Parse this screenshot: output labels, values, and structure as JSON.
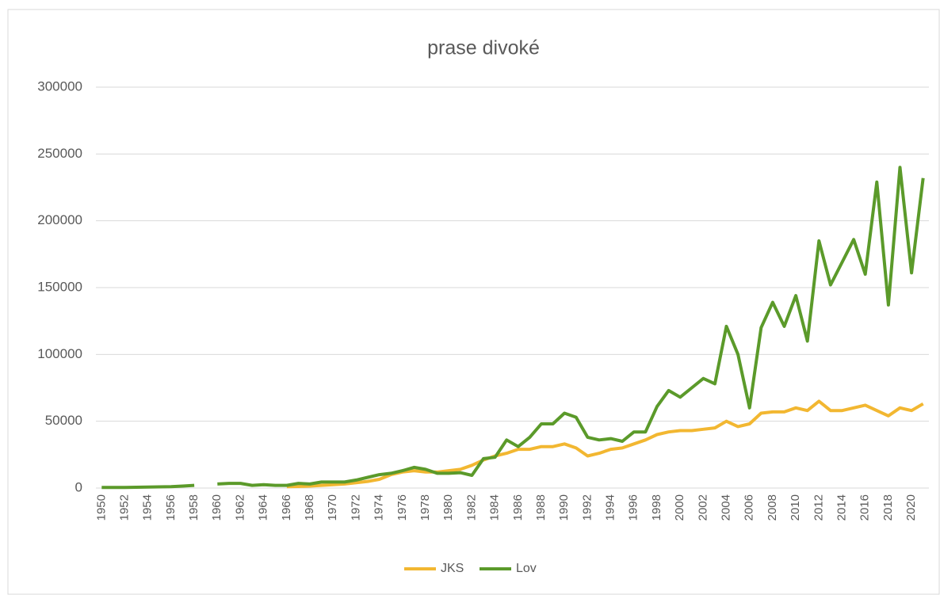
{
  "chart_data": {
    "type": "line",
    "title": "prase divoké",
    "categories": [
      "1950",
      null,
      "1952",
      null,
      "1954",
      null,
      "1956",
      null,
      "1958",
      null,
      "1960",
      null,
      "1962",
      null,
      "1964",
      null,
      "1966",
      null,
      "1968",
      null,
      "1970",
      null,
      "1972",
      null,
      "1974",
      null,
      "1976",
      null,
      "1978",
      null,
      "1980",
      null,
      "1982",
      null,
      "1984",
      null,
      "1986",
      null,
      "1988",
      null,
      "1990",
      null,
      "1992",
      null,
      "1994",
      null,
      "1996",
      null,
      "1998",
      null,
      "2000",
      null,
      "2002",
      null,
      "2004",
      null,
      "2006",
      null,
      "2008",
      null,
      "2010",
      null,
      "2012",
      null,
      "2014",
      null,
      "2016",
      null,
      "2018",
      null,
      "2020",
      null
    ],
    "series": [
      {
        "name": "JKS",
        "color": "#f2b731",
        "values": [
          null,
          null,
          null,
          null,
          null,
          null,
          null,
          null,
          null,
          null,
          null,
          null,
          null,
          null,
          null,
          null,
          1000,
          1200,
          1500,
          2000,
          2500,
          3000,
          4000,
          5000,
          6500,
          10000,
          12000,
          13000,
          12000,
          12000,
          13000,
          14000,
          17000,
          21000,
          24000,
          26000,
          29000,
          29000,
          31000,
          31000,
          33000,
          30000,
          24000,
          26000,
          29000,
          30000,
          33000,
          36000,
          40000,
          42000,
          43000,
          43000,
          44000,
          45000,
          50000,
          46000,
          48000,
          56000,
          57000,
          57000,
          60000,
          58000,
          65000,
          58000,
          58000,
          60000,
          62000,
          58000,
          54000,
          60000,
          58000,
          63000
        ]
      },
      {
        "name": "Lov",
        "color": "#5b9a2a",
        "values": [
          500,
          500,
          500,
          600,
          800,
          900,
          1000,
          1500,
          2000,
          null,
          3000,
          3500,
          3500,
          2000,
          2500,
          2000,
          2000,
          3500,
          3000,
          4500,
          4500,
          4500,
          6000,
          8000,
          10000,
          11000,
          13000,
          15500,
          14000,
          11000,
          11000,
          11500,
          9500,
          22000,
          23000,
          36000,
          31000,
          38000,
          48000,
          48000,
          56000,
          53000,
          38000,
          36000,
          37000,
          35000,
          42000,
          42000,
          61000,
          73000,
          68000,
          75000,
          82000,
          78000,
          121000,
          100000,
          60000,
          120000,
          139000,
          121000,
          144000,
          110000,
          185000,
          152000,
          169000,
          186000,
          160000,
          229000,
          137000,
          240000,
          161000,
          232000
        ]
      }
    ],
    "ylim": [
      0,
      300000
    ],
    "yticks": [
      0,
      50000,
      100000,
      150000,
      200000,
      250000,
      300000
    ],
    "grid": true,
    "legend": "bottom"
  }
}
